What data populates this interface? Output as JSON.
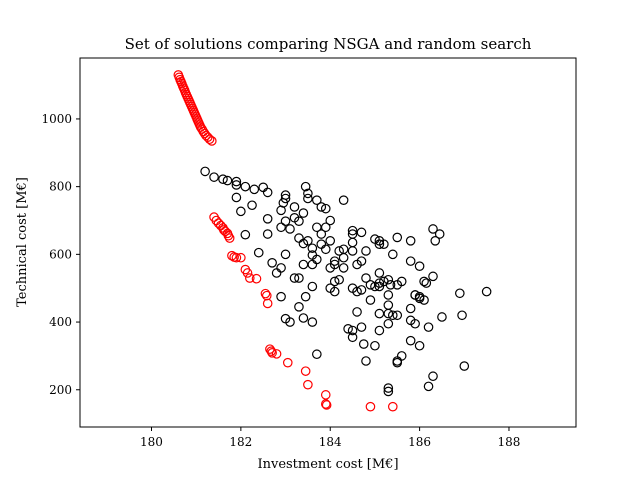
{
  "chart_data": {
    "type": "scatter",
    "title": "Set of solutions comparing NSGA and random search",
    "xlabel": "Investment cost [M€]",
    "ylabel": "Technical cost [M€]",
    "xlim": [
      178.4,
      189.5
    ],
    "ylim": [
      90,
      1180
    ],
    "x_ticks": [
      180,
      182,
      184,
      186,
      188
    ],
    "y_ticks": [
      200,
      400,
      600,
      800,
      1000
    ],
    "grid": false,
    "marker": "open-circle",
    "series": [
      {
        "color": "#ff0000",
        "points": [
          [
            180.6,
            1130
          ],
          [
            180.62,
            1123
          ],
          [
            180.64,
            1116
          ],
          [
            180.66,
            1110
          ],
          [
            180.68,
            1104
          ],
          [
            180.7,
            1097
          ],
          [
            180.72,
            1091
          ],
          [
            180.74,
            1085
          ],
          [
            180.76,
            1078
          ],
          [
            180.78,
            1072
          ],
          [
            180.8,
            1066
          ],
          [
            180.82,
            1060
          ],
          [
            180.84,
            1054
          ],
          [
            180.86,
            1048
          ],
          [
            180.88,
            1042
          ],
          [
            180.9,
            1036
          ],
          [
            180.92,
            1030
          ],
          [
            180.94,
            1024
          ],
          [
            180.96,
            1018
          ],
          [
            180.98,
            1012
          ],
          [
            181.0,
            1006
          ],
          [
            181.02,
            1000
          ],
          [
            181.04,
            994
          ],
          [
            181.06,
            988
          ],
          [
            181.08,
            982
          ],
          [
            181.1,
            976
          ],
          [
            181.13,
            970
          ],
          [
            181.16,
            963
          ],
          [
            181.19,
            957
          ],
          [
            181.22,
            951
          ],
          [
            181.26,
            946
          ],
          [
            181.3,
            940
          ],
          [
            181.35,
            935
          ],
          [
            181.4,
            710
          ],
          [
            181.45,
            700
          ],
          [
            181.5,
            692
          ],
          [
            181.55,
            685
          ],
          [
            181.6,
            678
          ],
          [
            181.62,
            672
          ],
          [
            181.65,
            668
          ],
          [
            181.7,
            662
          ],
          [
            181.72,
            655
          ],
          [
            181.75,
            648
          ],
          [
            181.8,
            596
          ],
          [
            181.85,
            592
          ],
          [
            181.9,
            590
          ],
          [
            182.0,
            590
          ],
          [
            182.1,
            555
          ],
          [
            182.15,
            545
          ],
          [
            182.2,
            530
          ],
          [
            182.35,
            528
          ],
          [
            182.55,
            484
          ],
          [
            182.58,
            478
          ],
          [
            182.6,
            455
          ],
          [
            182.65,
            320
          ],
          [
            182.68,
            314
          ],
          [
            182.7,
            309
          ],
          [
            182.8,
            306
          ],
          [
            183.05,
            280
          ],
          [
            183.45,
            255
          ],
          [
            183.5,
            215
          ],
          [
            183.9,
            185
          ],
          [
            183.9,
            158
          ],
          [
            183.92,
            155
          ],
          [
            184.9,
            150
          ],
          [
            185.4,
            150
          ]
        ]
      },
      {
        "color": "#000000",
        "points": [
          [
            181.2,
            845
          ],
          [
            181.4,
            828
          ],
          [
            181.6,
            822
          ],
          [
            181.7,
            818
          ],
          [
            181.9,
            815
          ],
          [
            181.9,
            805
          ],
          [
            182.1,
            800
          ],
          [
            182.3,
            792
          ],
          [
            182.5,
            798
          ],
          [
            182.6,
            783
          ],
          [
            182.9,
            680
          ],
          [
            183.0,
            775
          ],
          [
            183.0,
            765
          ],
          [
            182.95,
            752
          ],
          [
            183.2,
            740
          ],
          [
            183.45,
            800
          ],
          [
            183.5,
            780
          ],
          [
            183.5,
            765
          ],
          [
            183.7,
            760
          ],
          [
            183.8,
            740
          ],
          [
            183.9,
            735
          ],
          [
            181.9,
            768
          ],
          [
            182.0,
            727
          ],
          [
            182.25,
            745
          ],
          [
            182.9,
            730
          ],
          [
            182.6,
            705
          ],
          [
            182.6,
            660
          ],
          [
            183.0,
            698
          ],
          [
            183.2,
            708
          ],
          [
            183.3,
            698
          ],
          [
            183.4,
            722
          ],
          [
            182.1,
            658
          ],
          [
            182.8,
            545
          ],
          [
            182.9,
            560
          ],
          [
            183.0,
            600
          ],
          [
            183.1,
            675
          ],
          [
            183.3,
            648
          ],
          [
            183.4,
            632
          ],
          [
            183.5,
            640
          ],
          [
            183.6,
            618
          ],
          [
            183.7,
            680
          ],
          [
            183.8,
            660
          ],
          [
            183.9,
            680
          ],
          [
            184.0,
            700
          ],
          [
            184.0,
            640
          ],
          [
            183.8,
            630
          ],
          [
            183.9,
            615
          ],
          [
            183.6,
            598
          ],
          [
            183.7,
            585
          ],
          [
            183.6,
            570
          ],
          [
            183.4,
            570
          ],
          [
            183.2,
            530
          ],
          [
            183.3,
            530
          ],
          [
            183.45,
            475
          ],
          [
            183.6,
            505
          ],
          [
            183.6,
            400
          ],
          [
            183.4,
            412
          ],
          [
            183.7,
            305
          ],
          [
            182.4,
            605
          ],
          [
            182.7,
            575
          ],
          [
            182.9,
            475
          ],
          [
            183.1,
            400
          ],
          [
            183.0,
            410
          ],
          [
            183.3,
            445
          ],
          [
            184.0,
            500
          ],
          [
            184.1,
            520
          ],
          [
            184.1,
            490
          ],
          [
            184.2,
            525
          ],
          [
            184.0,
            560
          ],
          [
            184.1,
            570
          ],
          [
            184.1,
            580
          ],
          [
            184.3,
            560
          ],
          [
            184.3,
            590
          ],
          [
            184.5,
            610
          ],
          [
            184.5,
            635
          ],
          [
            184.5,
            660
          ],
          [
            184.5,
            670
          ],
          [
            184.7,
            665
          ],
          [
            184.8,
            610
          ],
          [
            184.7,
            580
          ],
          [
            184.6,
            570
          ],
          [
            184.3,
            760
          ],
          [
            184.3,
            615
          ],
          [
            184.8,
            530
          ],
          [
            184.5,
            500
          ],
          [
            184.6,
            490
          ],
          [
            184.7,
            495
          ],
          [
            184.9,
            510
          ],
          [
            185.0,
            505
          ],
          [
            185.1,
            505
          ],
          [
            185.1,
            515
          ],
          [
            185.2,
            520
          ],
          [
            185.3,
            525
          ],
          [
            185.35,
            510
          ],
          [
            185.1,
            545
          ],
          [
            185.0,
            645
          ],
          [
            185.1,
            630
          ],
          [
            185.2,
            630
          ],
          [
            185.5,
            650
          ],
          [
            185.8,
            640
          ],
          [
            185.4,
            600
          ],
          [
            185.6,
            520
          ],
          [
            185.5,
            510
          ],
          [
            185.8,
            580
          ],
          [
            186.0,
            565
          ],
          [
            185.9,
            480
          ],
          [
            186.0,
            475
          ],
          [
            186.1,
            465
          ],
          [
            186.1,
            520
          ],
          [
            186.15,
            515
          ],
          [
            186.3,
            535
          ],
          [
            186.3,
            675
          ],
          [
            186.35,
            640
          ],
          [
            186.45,
            660
          ],
          [
            186.2,
            385
          ],
          [
            186.5,
            415
          ],
          [
            185.8,
            405
          ],
          [
            185.9,
            395
          ],
          [
            185.8,
            345
          ],
          [
            186.0,
            330
          ],
          [
            185.6,
            300
          ],
          [
            185.5,
            285
          ],
          [
            185.5,
            280
          ],
          [
            185.3,
            195
          ],
          [
            185.3,
            205
          ],
          [
            185.0,
            330
          ],
          [
            184.8,
            285
          ],
          [
            184.5,
            355
          ],
          [
            184.5,
            375
          ],
          [
            184.6,
            430
          ],
          [
            184.7,
            385
          ],
          [
            184.4,
            380
          ],
          [
            184.75,
            335
          ],
          [
            184.9,
            465
          ],
          [
            185.1,
            425
          ],
          [
            185.1,
            375
          ],
          [
            185.3,
            395
          ],
          [
            185.3,
            425
          ],
          [
            185.4,
            420
          ],
          [
            185.5,
            420
          ],
          [
            185.3,
            450
          ],
          [
            185.3,
            480
          ],
          [
            185.8,
            440
          ],
          [
            185.9,
            480
          ],
          [
            186.0,
            470
          ],
          [
            186.2,
            210
          ],
          [
            186.3,
            240
          ],
          [
            186.9,
            485
          ],
          [
            186.95,
            420
          ],
          [
            187.0,
            270
          ],
          [
            187.5,
            490
          ],
          [
            185.1,
            640
          ],
          [
            184.2,
            610
          ]
        ]
      }
    ]
  }
}
